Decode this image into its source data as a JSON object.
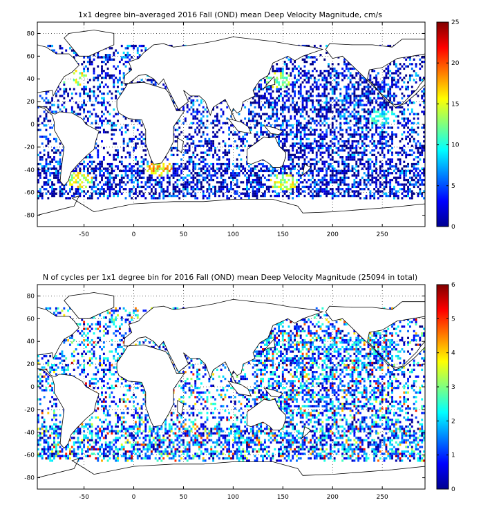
{
  "panels": [
    {
      "title": "1x1 degree bin–averaged 2016 Fall (OND) mean Deep Velocity Magnitude, cm/s",
      "x_ticks": [
        "-50",
        "0",
        "50",
        "100",
        "150",
        "200",
        "250"
      ],
      "y_ticks": [
        "80",
        "60",
        "40",
        "20",
        "0",
        "-20",
        "-40",
        "-60",
        "-80"
      ],
      "colorbar_ticks": [
        "25",
        "20",
        "15",
        "10",
        "5",
        "0"
      ]
    },
    {
      "title": "N of cycles per 1x1 degree bin for 2016 Fall (OND) mean Deep Velocity Magnitude (25094 in total)",
      "x_ticks": [
        "-50",
        "0",
        "50",
        "100",
        "150",
        "200",
        "250"
      ],
      "y_ticks": [
        "80",
        "60",
        "40",
        "20",
        "0",
        "-20",
        "-40",
        "-60",
        "-80"
      ],
      "colorbar_ticks": [
        "6",
        "5",
        "4",
        "3",
        "2",
        "1",
        "0"
      ]
    }
  ],
  "chart_data": [
    {
      "type": "heatmap",
      "title": "1x1 degree bin–averaged 2016 Fall (OND) mean Deep Velocity Magnitude, cm/s",
      "xlabel": "",
      "ylabel": "",
      "xlim": [
        -97,
        293
      ],
      "ylim": [
        -90,
        90
      ],
      "x_ticks": [
        -50,
        0,
        50,
        100,
        150,
        200,
        250
      ],
      "y_ticks": [
        -80,
        -60,
        -40,
        -20,
        0,
        20,
        40,
        60,
        80
      ],
      "colorbar": {
        "min": 0,
        "max": 25,
        "ticks": [
          0,
          5,
          10,
          15,
          20,
          25
        ],
        "colormap": "jet"
      },
      "grid": true,
      "hotspots": [
        {
          "lon": -60,
          "lat": 40,
          "value": 18
        },
        {
          "lon": 145,
          "lat": 38,
          "value": 17
        },
        {
          "lon": 25,
          "lat": -40,
          "value": 20
        },
        {
          "lon": -55,
          "lat": -50,
          "value": 18
        },
        {
          "lon": 150,
          "lat": -52,
          "value": 17
        },
        {
          "lon": 250,
          "lat": 5,
          "value": 12
        }
      ]
    },
    {
      "type": "heatmap",
      "title": "N of cycles per 1x1 degree bin for 2016 Fall (OND) mean Deep Velocity Magnitude (25094 in total)",
      "xlabel": "",
      "ylabel": "",
      "xlim": [
        -97,
        293
      ],
      "ylim": [
        -90,
        90
      ],
      "x_ticks": [
        -50,
        0,
        50,
        100,
        150,
        200,
        250
      ],
      "y_ticks": [
        -80,
        -60,
        -40,
        -20,
        0,
        20,
        40,
        60,
        80
      ],
      "colorbar": {
        "min": 0,
        "max": 6,
        "ticks": [
          0,
          1,
          2,
          3,
          4,
          5,
          6
        ],
        "colormap": "jet"
      },
      "grid": true,
      "total": 25094
    }
  ]
}
